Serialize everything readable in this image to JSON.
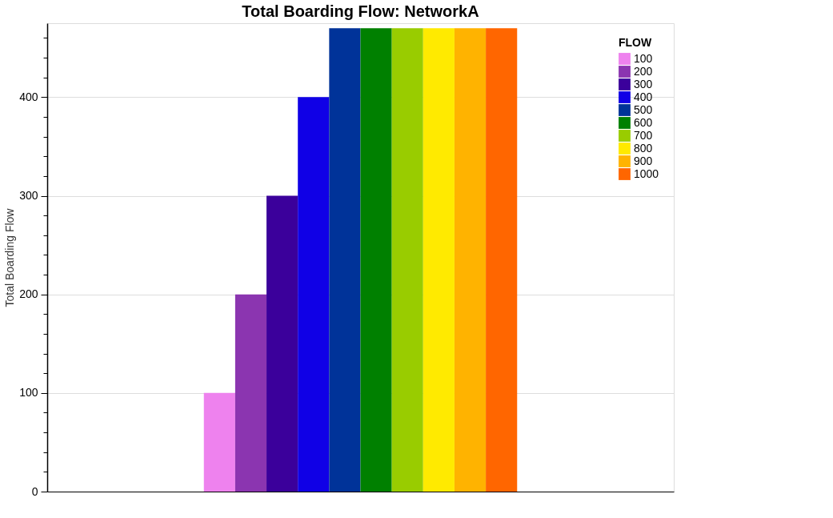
{
  "chart_data": {
    "type": "bar",
    "title": "Total Boarding Flow: NetworkA",
    "ylabel": "Total Boarding Flow",
    "legend_title": "FLOW",
    "categories": [
      null,
      null,
      null,
      null,
      null,
      null,
      null,
      null,
      null,
      null,
      null,
      null,
      null,
      null,
      null,
      null,
      null,
      null,
      null,
      null
    ],
    "series": [
      {
        "name": "100",
        "color": "#ee82ee",
        "values": [
          null,
          null,
          null,
          null,
          null,
          100,
          null,
          null,
          null,
          null,
          null,
          null,
          null,
          null,
          null,
          null,
          null,
          null,
          null,
          null
        ]
      },
      {
        "name": "200",
        "color": "#8b35b0",
        "values": [
          null,
          null,
          null,
          null,
          null,
          null,
          200,
          null,
          null,
          null,
          null,
          null,
          null,
          null,
          null,
          null,
          null,
          null,
          null,
          null
        ]
      },
      {
        "name": "300",
        "color": "#3b009b",
        "values": [
          null,
          null,
          null,
          null,
          null,
          null,
          null,
          300,
          null,
          null,
          null,
          null,
          null,
          null,
          null,
          null,
          null,
          null,
          null,
          null
        ]
      },
      {
        "name": "400",
        "color": "#1000e6",
        "values": [
          null,
          null,
          null,
          null,
          null,
          null,
          null,
          null,
          400,
          null,
          null,
          null,
          null,
          null,
          null,
          null,
          null,
          null,
          null,
          null
        ]
      },
      {
        "name": "500",
        "color": "#003399",
        "values": [
          null,
          null,
          null,
          null,
          null,
          null,
          null,
          null,
          null,
          470,
          null,
          null,
          null,
          null,
          null,
          null,
          null,
          null,
          null,
          null
        ]
      },
      {
        "name": "600",
        "color": "#008000",
        "values": [
          null,
          null,
          null,
          null,
          null,
          null,
          null,
          null,
          null,
          null,
          470,
          null,
          null,
          null,
          null,
          null,
          null,
          null,
          null,
          null
        ]
      },
      {
        "name": "700",
        "color": "#99cc00",
        "values": [
          null,
          null,
          null,
          null,
          null,
          null,
          null,
          null,
          null,
          null,
          null,
          470,
          null,
          null,
          null,
          null,
          null,
          null,
          null,
          null
        ]
      },
      {
        "name": "800",
        "color": "#ffea00",
        "values": [
          null,
          null,
          null,
          null,
          null,
          null,
          null,
          null,
          null,
          null,
          null,
          null,
          470,
          null,
          null,
          null,
          null,
          null,
          null,
          null
        ]
      },
      {
        "name": "900",
        "color": "#ffb300",
        "values": [
          null,
          null,
          null,
          null,
          null,
          null,
          null,
          null,
          null,
          null,
          null,
          null,
          null,
          470,
          null,
          null,
          null,
          null,
          null,
          null
        ]
      },
      {
        "name": "1000",
        "color": "#ff6600",
        "values": [
          null,
          null,
          null,
          null,
          null,
          null,
          null,
          null,
          null,
          null,
          null,
          null,
          null,
          null,
          470,
          null,
          null,
          null,
          null,
          null
        ]
      }
    ],
    "ylim": [
      0,
      475
    ],
    "yticks": [
      0,
      {
        "value": 20,
        "label": null
      },
      {
        "value": 40,
        "label": null
      },
      {
        "value": 60,
        "label": null
      },
      {
        "value": 80,
        "label": null
      },
      100,
      {
        "value": 120,
        "label": null
      },
      {
        "value": 140,
        "label": null
      },
      {
        "value": 160,
        "label": null
      },
      {
        "value": 180,
        "label": null
      },
      200,
      {
        "value": 220,
        "label": null
      },
      {
        "value": 240,
        "label": null
      },
      {
        "value": 260,
        "label": null
      },
      {
        "value": 280,
        "label": null
      },
      300,
      {
        "value": 320,
        "label": null
      },
      {
        "value": 340,
        "label": null
      },
      {
        "value": 360,
        "label": null
      },
      {
        "value": 380,
        "label": null
      },
      400,
      {
        "value": 420,
        "label": null
      },
      {
        "value": 440,
        "label": null
      },
      {
        "value": 460,
        "label": null
      }
    ],
    "grid": "y",
    "legend": "top right",
    "tick_labels": "y"
  }
}
